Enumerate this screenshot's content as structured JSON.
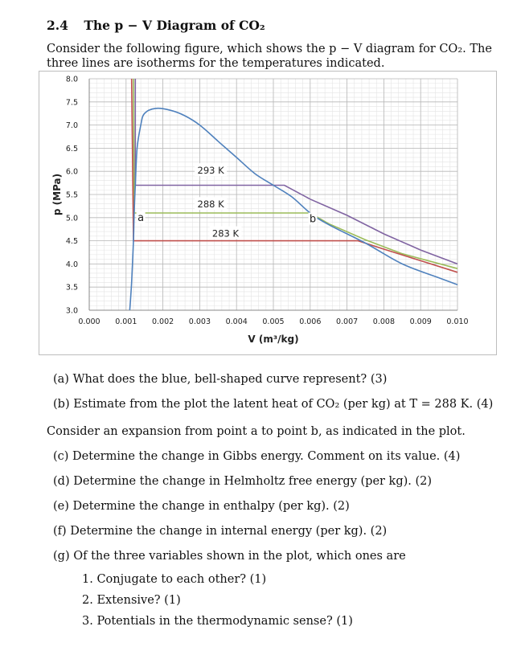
{
  "section": {
    "number": "2.4",
    "title": "The p − V Diagram of CO₂"
  },
  "intro": "Consider the following figure, which shows the p − V diagram for CO₂. The three lines are isotherms for the temperatures indicated.",
  "chart_data": {
    "type": "line",
    "xlabel": "V (m³/kg)",
    "ylabel": "p (MPa)",
    "xlim": [
      0,
      0.01
    ],
    "ylim": [
      3.0,
      8.0
    ],
    "x_ticks": [
      "0.000",
      "0.001",
      "0.002",
      "0.003",
      "0.004",
      "0.005",
      "0.006",
      "0.007",
      "0.008",
      "0.009",
      "0.010"
    ],
    "y_ticks": [
      "3.0",
      "3.5",
      "4.0",
      "4.5",
      "5.0",
      "5.5",
      "6.0",
      "6.5",
      "7.0",
      "7.5",
      "8.0"
    ],
    "grid": true,
    "saturation_curve": {
      "color": "#4f81bd",
      "points": [
        [
          0.0011,
          3.0
        ],
        [
          0.00115,
          3.6
        ],
        [
          0.0012,
          4.5
        ],
        [
          0.00122,
          5.1
        ],
        [
          0.00125,
          5.7
        ],
        [
          0.0013,
          6.5
        ],
        [
          0.0014,
          7.0
        ],
        [
          0.0015,
          7.25
        ],
        [
          0.0018,
          7.36
        ],
        [
          0.0022,
          7.32
        ],
        [
          0.0026,
          7.2
        ],
        [
          0.003,
          7.0
        ],
        [
          0.0035,
          6.65
        ],
        [
          0.004,
          6.3
        ],
        [
          0.0045,
          5.95
        ],
        [
          0.005,
          5.7
        ],
        [
          0.0055,
          5.45
        ],
        [
          0.006,
          5.1
        ],
        [
          0.0065,
          4.85
        ],
        [
          0.0075,
          4.45
        ],
        [
          0.0085,
          4.0
        ],
        [
          0.0095,
          3.7
        ],
        [
          0.01,
          3.55
        ]
      ]
    },
    "isotherms": [
      {
        "label": "293 K",
        "color": "#8064a2",
        "points": [
          [
            0.00125,
            8.0
          ],
          [
            0.00125,
            5.7
          ],
          [
            0.0053,
            5.7
          ],
          [
            0.006,
            5.4
          ],
          [
            0.007,
            5.05
          ],
          [
            0.008,
            4.65
          ],
          [
            0.009,
            4.3
          ],
          [
            0.01,
            4.0
          ]
        ]
      },
      {
        "label": "288 K",
        "color": "#9bbb59",
        "points": [
          [
            0.0012,
            8.0
          ],
          [
            0.00122,
            5.1
          ],
          [
            0.006,
            5.1
          ],
          [
            0.0065,
            4.87
          ],
          [
            0.0075,
            4.52
          ],
          [
            0.0085,
            4.22
          ],
          [
            0.01,
            3.9
          ]
        ]
      },
      {
        "label": "283 K",
        "color": "#c0504d",
        "points": [
          [
            0.00115,
            8.0
          ],
          [
            0.0012,
            4.5
          ],
          [
            0.0073,
            4.5
          ],
          [
            0.008,
            4.32
          ],
          [
            0.009,
            4.07
          ],
          [
            0.01,
            3.82
          ]
        ]
      }
    ],
    "annotations": [
      {
        "text": "a",
        "x": 0.00128,
        "y": 5.0
      },
      {
        "text": "b",
        "x": 0.00595,
        "y": 4.97
      }
    ]
  },
  "questions": {
    "a": "(a) What does the blue, bell-shaped curve represent? (3)",
    "b": "(b) Estimate from the plot the latent heat of CO₂ (per kg) at T = 288 K. (4)",
    "transition": "Consider an expansion from point a to point b, as indicated in the plot.",
    "c": "(c) Determine the change in Gibbs energy. Comment on its value. (4)",
    "d": "(d) Determine the change in Helmholtz free energy (per kg). (2)",
    "e": "(e) Determine the change in enthalpy (per kg). (2)",
    "f": "(f) Determine the change in internal energy (per kg). (2)",
    "g": "(g) Of the three variables shown in the plot, which ones are",
    "g_items": [
      "1. Conjugate to each other? (1)",
      "2. Extensive? (1)",
      "3. Potentials in the thermodynamic sense? (1)"
    ]
  }
}
